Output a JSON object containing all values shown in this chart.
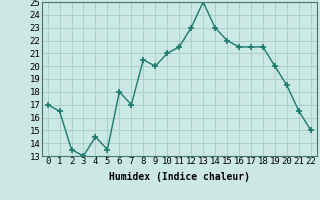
{
  "x": [
    0,
    1,
    2,
    3,
    4,
    5,
    6,
    7,
    8,
    9,
    10,
    11,
    12,
    13,
    14,
    15,
    16,
    17,
    18,
    19,
    20,
    21,
    22
  ],
  "y": [
    17,
    16.5,
    13.5,
    13,
    14.5,
    13.5,
    18,
    17,
    20.5,
    20,
    21,
    21.5,
    23,
    25,
    23,
    22,
    21.5,
    21.5,
    21.5,
    20,
    18.5,
    16.5,
    15
  ],
  "line_color": "#1a7a6e",
  "marker": "+",
  "marker_size": 4,
  "marker_lw": 1.2,
  "bg_color": "#cce8e4",
  "grid_color": "#aad0cc",
  "xlabel": "Humidex (Indice chaleur)",
  "ylim": [
    13,
    25
  ],
  "xlim_min": -0.5,
  "xlim_max": 22.5,
  "yticks": [
    13,
    14,
    15,
    16,
    17,
    18,
    19,
    20,
    21,
    22,
    23,
    24,
    25
  ],
  "xticks": [
    0,
    1,
    2,
    3,
    4,
    5,
    6,
    7,
    8,
    9,
    10,
    11,
    12,
    13,
    14,
    15,
    16,
    17,
    18,
    19,
    20,
    21,
    22
  ],
  "xlabel_fontsize": 7,
  "tick_fontsize": 6.5,
  "line_width": 1.0
}
